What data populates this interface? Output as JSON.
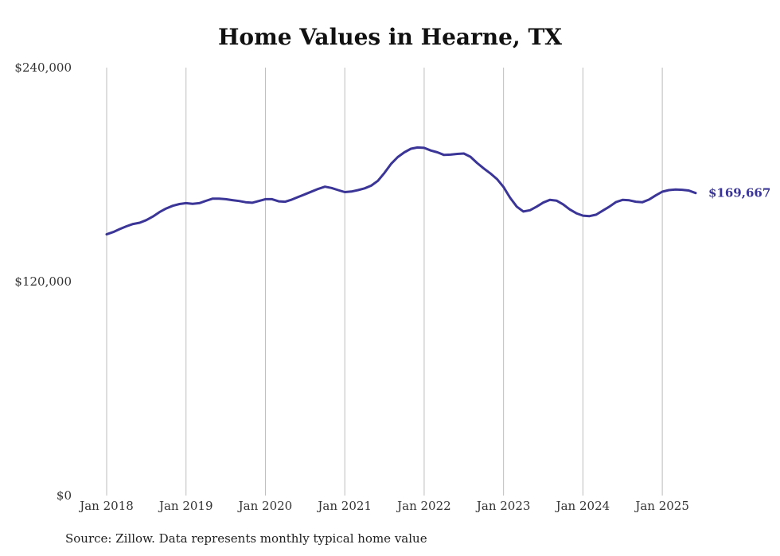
{
  "chart_data": {
    "type": "line",
    "title": "Home Values in Hearne, TX",
    "xlabel": "",
    "ylabel": "",
    "y_ticks": [
      {
        "value": 240000,
        "label": "$240,000"
      },
      {
        "value": 120000,
        "label": "$120,000"
      },
      {
        "value": 0,
        "label": "$0"
      }
    ],
    "ylim": [
      0,
      240000
    ],
    "xlim": [
      2018.0,
      2025.42
    ],
    "x_ticks": [
      {
        "value": 2018,
        "label": "Jan 2018"
      },
      {
        "value": 2019,
        "label": "Jan 2019"
      },
      {
        "value": 2020,
        "label": "Jan 2020"
      },
      {
        "value": 2021,
        "label": "Jan 2021"
      },
      {
        "value": 2022,
        "label": "Jan 2022"
      },
      {
        "value": 2023,
        "label": "Jan 2023"
      },
      {
        "value": 2024,
        "label": "Jan 2024"
      },
      {
        "value": 2025,
        "label": "Jan 2025"
      }
    ],
    "grid": "vertical",
    "series": [
      {
        "color": "#3a3597",
        "end_label": "$169,667",
        "x": [
          2018.0,
          2018.083,
          2018.167,
          2018.25,
          2018.333,
          2018.417,
          2018.5,
          2018.583,
          2018.667,
          2018.75,
          2018.833,
          2018.917,
          2019.0,
          2019.083,
          2019.167,
          2019.25,
          2019.333,
          2019.417,
          2019.5,
          2019.583,
          2019.667,
          2019.75,
          2019.833,
          2019.917,
          2020.0,
          2020.083,
          2020.167,
          2020.25,
          2020.333,
          2020.417,
          2020.5,
          2020.583,
          2020.667,
          2020.75,
          2020.833,
          2020.917,
          2021.0,
          2021.083,
          2021.167,
          2021.25,
          2021.333,
          2021.417,
          2021.5,
          2021.583,
          2021.667,
          2021.75,
          2021.833,
          2021.917,
          2022.0,
          2022.083,
          2022.167,
          2022.25,
          2022.333,
          2022.417,
          2022.5,
          2022.583,
          2022.667,
          2022.75,
          2022.833,
          2022.917,
          2023.0,
          2023.083,
          2023.167,
          2023.25,
          2023.333,
          2023.417,
          2023.5,
          2023.583,
          2023.667,
          2023.75,
          2023.833,
          2023.917,
          2024.0,
          2024.083,
          2024.167,
          2024.25,
          2024.333,
          2024.417,
          2024.5,
          2024.583,
          2024.667,
          2024.75,
          2024.833,
          2024.917,
          2025.0,
          2025.083,
          2025.167,
          2025.25,
          2025.333,
          2025.42
        ],
        "values": [
          146500,
          147800,
          149500,
          151000,
          152300,
          153000,
          154500,
          156500,
          159000,
          161000,
          162500,
          163500,
          164000,
          163600,
          164000,
          165300,
          166500,
          166500,
          166200,
          165700,
          165200,
          164500,
          164200,
          165200,
          166200,
          166200,
          165000,
          164800,
          166000,
          167500,
          169000,
          170500,
          172000,
          173200,
          172500,
          171300,
          170200,
          170500,
          171300,
          172300,
          173800,
          176500,
          181000,
          186000,
          189800,
          192500,
          194500,
          195200,
          195000,
          193500,
          192500,
          191000,
          191200,
          191600,
          191800,
          190000,
          186500,
          183500,
          180700,
          177500,
          173000,
          167000,
          162000,
          159300,
          160000,
          162000,
          164300,
          165800,
          165400,
          163300,
          160500,
          158300,
          157000,
          156700,
          157500,
          159800,
          162000,
          164600,
          165800,
          165600,
          164800,
          164500,
          166000,
          168300,
          170400,
          171300,
          171600,
          171500,
          171100,
          169667
        ]
      }
    ],
    "source": "Source: Zillow. Data represents monthly typical home value"
  }
}
